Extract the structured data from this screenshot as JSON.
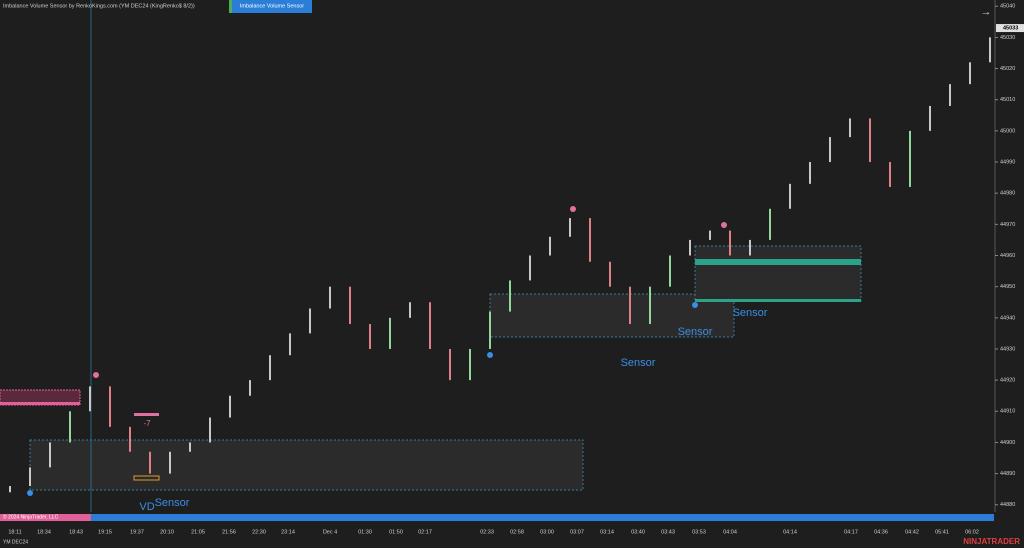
{
  "window": {
    "title": "Imbalance Volume Sensor by RenkoKings.com (YM DEC24 (KingRenko$ 8/2))",
    "indicator_button": "Imbalance Volume Sensor",
    "copyright": "© 2024 NinjaTrader, LLC",
    "instrument": "YM DEC24",
    "brand": "NINJATRADER"
  },
  "chart_data": {
    "type": "renko",
    "categories": [
      "18:11",
      "18:34",
      "18:43",
      "19:15",
      "19:37",
      "20:10",
      "21:05",
      "21:56",
      "22:30",
      "23:14",
      "Dec 4",
      "01:30",
      "01:50",
      "02:17",
      "02:33",
      "02:58",
      "03:00",
      "03:07",
      "03:14",
      "03:40",
      "03:43",
      "03:53",
      "04:04",
      "04:14",
      "04:17",
      "04:36",
      "04:42",
      "05:41",
      "06:02"
    ],
    "closes": [
      44886,
      44892,
      44900,
      44910,
      44918,
      44905,
      44897,
      44890,
      44897,
      44900,
      44908,
      44915,
      44920,
      44928,
      44935,
      44943,
      44950,
      44938,
      44930,
      44940,
      44945,
      44930,
      44920,
      44930,
      44942,
      44952,
      44960,
      44966,
      44972,
      44958,
      44950,
      44938,
      44950,
      44960,
      44965,
      44968,
      44960,
      44965,
      44975,
      44983,
      44990,
      44998,
      45004,
      44990,
      44982,
      45000,
      45008,
      45015,
      45022,
      45030
    ],
    "up_color": "#c8c8c8",
    "down_color": "#e07f86",
    "last_price": 45033,
    "ylim": [
      44878,
      45042
    ],
    "yticks": [
      44880,
      44890,
      44900,
      44910,
      44920,
      44930,
      44940,
      44950,
      44960,
      44970,
      44980,
      44990,
      45000,
      45010,
      45020,
      45030,
      45040
    ],
    "annotations": [
      "-7",
      "VD",
      "Sensor",
      "Sensor",
      "Sensor",
      "Sensor"
    ]
  }
}
